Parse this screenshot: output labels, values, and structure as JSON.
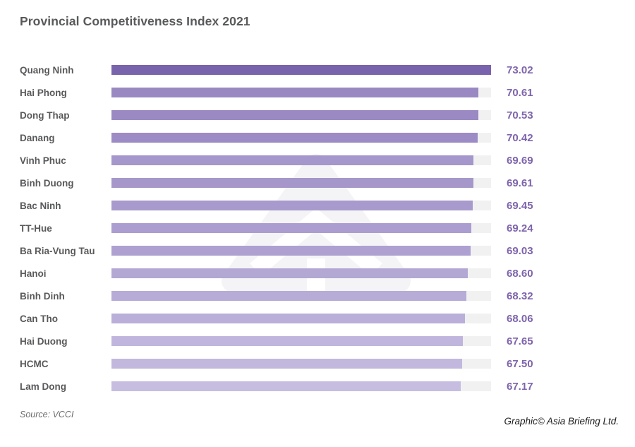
{
  "chart_data": {
    "type": "bar",
    "orientation": "horizontal",
    "title": "Provincial Competitiveness Index 2021",
    "categories": [
      "Quang Ninh",
      "Hai Phong",
      "Dong Thap",
      "Danang",
      "Vinh Phuc",
      "Binh Duong",
      "Bac Ninh",
      "TT-Hue",
      "Ba Ria-Vung Tau",
      "Hanoi",
      "Binh Dinh",
      "Can Tho",
      "Hai Duong",
      "HCMC",
      "Lam Dong"
    ],
    "values": [
      73.02,
      70.61,
      70.53,
      70.42,
      69.69,
      69.61,
      69.45,
      69.24,
      69.03,
      68.6,
      68.32,
      68.06,
      67.65,
      67.5,
      67.17
    ],
    "value_labels": [
      "73.02",
      "70.61",
      "70.53",
      "70.42",
      "69.69",
      "69.61",
      "69.45",
      "69.24",
      "69.03",
      "68.60",
      "68.32",
      "68.06",
      "67.65",
      "67.50",
      "67.17"
    ],
    "xlim": [
      0,
      73.02
    ],
    "grid": false,
    "legend": false,
    "track_color": "#f1f1f2",
    "bar_color_high": "#7a63ad",
    "bar_color_low": "#c6bde1",
    "value_label_color": "#7d64ab",
    "category_label_color": "#58595b"
  },
  "header": {
    "title_color": "#58595b"
  },
  "watermark": {
    "icon": "asia-briefing-arrow-logo",
    "color": "#f4f4f6"
  },
  "footer": {
    "source": "Source: VCCI",
    "credit": "Graphic© Asia Briefing Ltd."
  }
}
